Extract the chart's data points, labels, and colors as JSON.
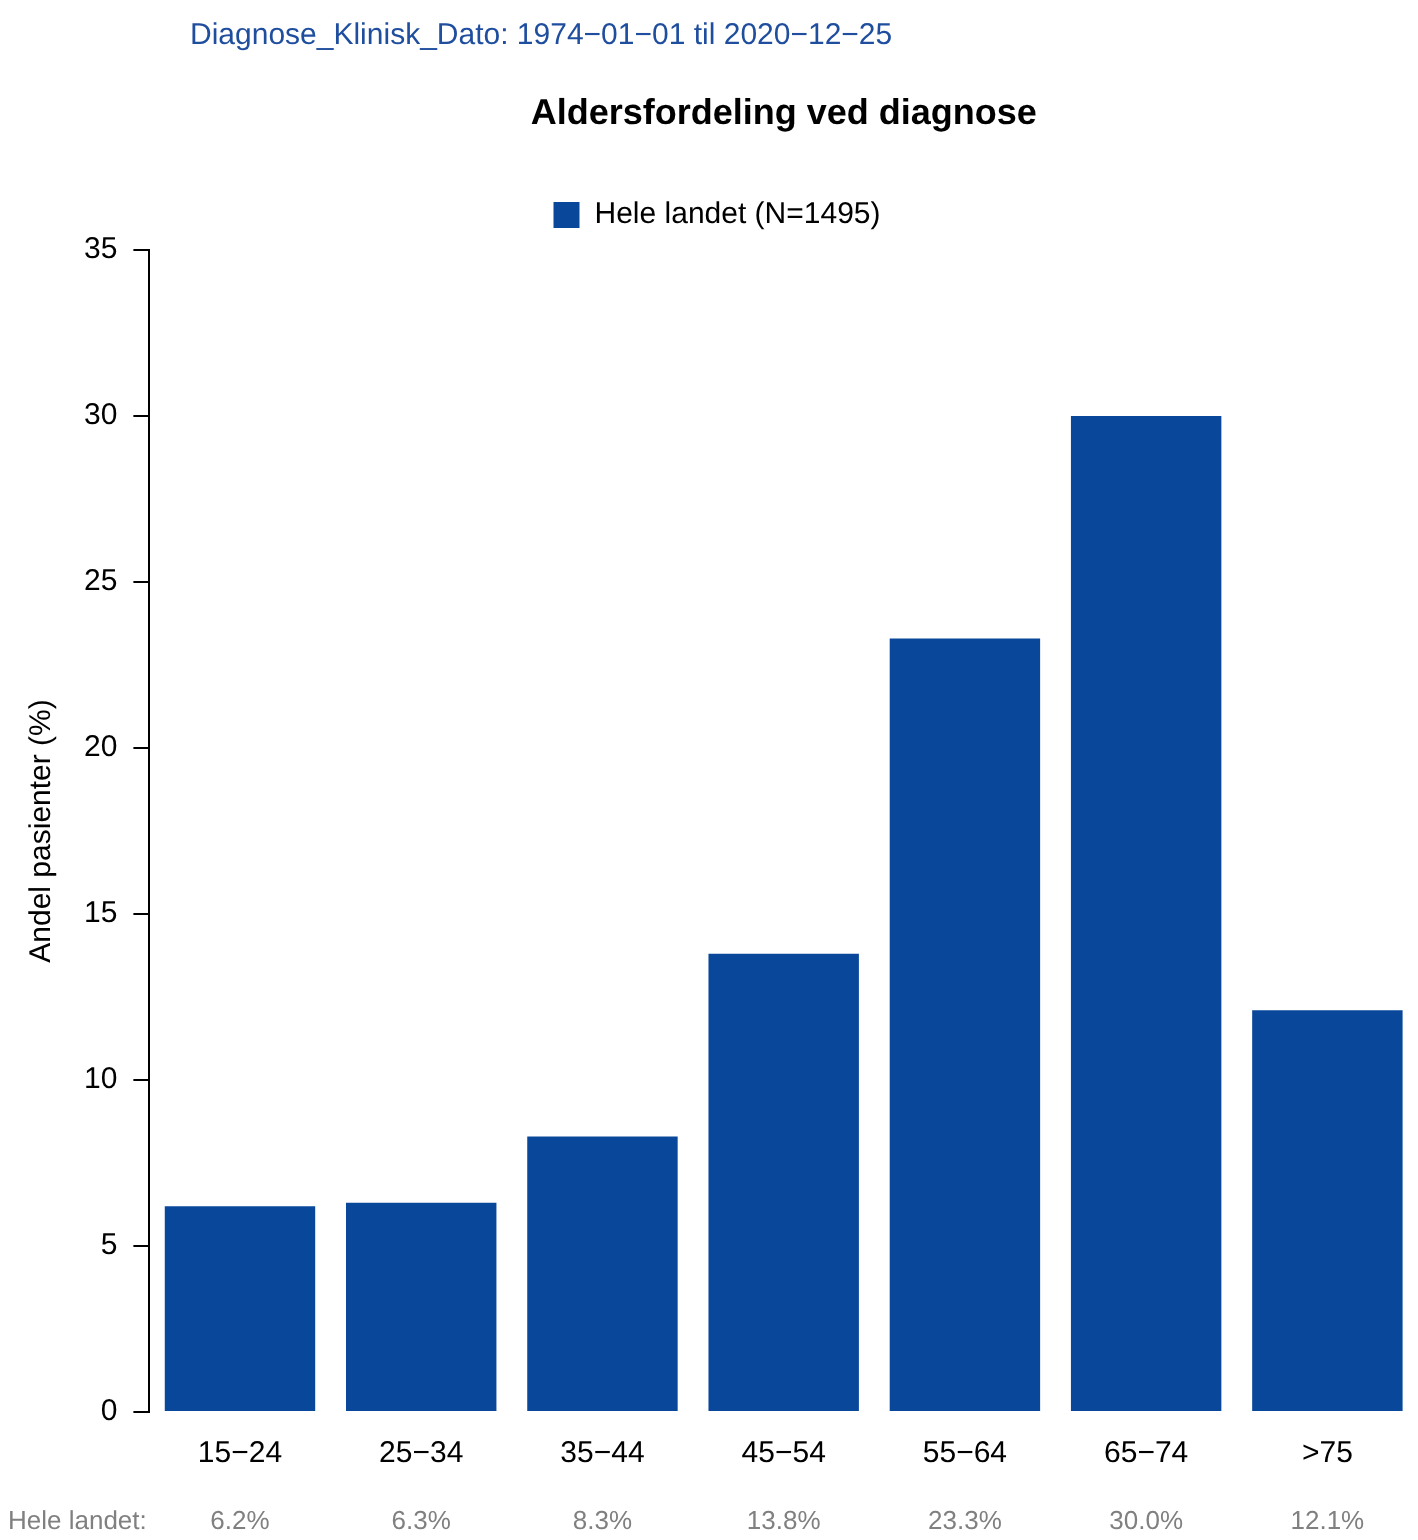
{
  "chart_data": {
    "type": "bar",
    "title": "Aldersfordeling ved diagnose",
    "subtitle": "Diagnose_Klinisk_Dato: 1974−01−01 til 2020−12−25",
    "ylabel": "Andel pasienter (%)",
    "categories": [
      "15−24",
      "25−34",
      "35−44",
      "45−54",
      "55−64",
      "65−74",
      ">75"
    ],
    "series": [
      {
        "name": "Hele landet (N=1495)",
        "color": "#08479a",
        "values": [
          6.2,
          6.3,
          8.3,
          13.8,
          23.3,
          30.0,
          12.1
        ],
        "value_labels": [
          "6.2%",
          "6.3%",
          "8.3%",
          "13.8%",
          "23.3%",
          "30.0%",
          "12.1%"
        ]
      }
    ],
    "annotations": [
      "Hele landet:"
    ],
    "ylim": [
      0,
      35
    ],
    "yticks": [
      0,
      5,
      10,
      15,
      20,
      25,
      30,
      35
    ],
    "grid": false,
    "legend": "top"
  }
}
